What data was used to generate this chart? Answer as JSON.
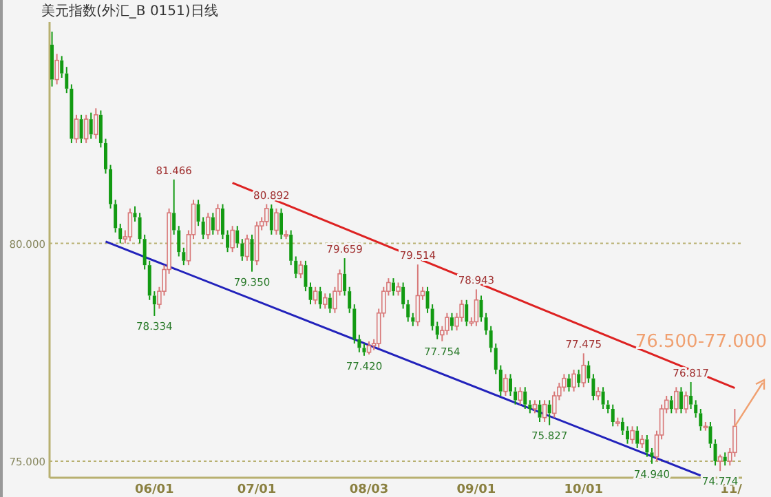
{
  "chart_data": {
    "type": "candlestick",
    "title": "美元指数(外汇_B 0151)日线",
    "categories": [
      null,
      null,
      null,
      null,
      null,
      null,
      null,
      null,
      null,
      null,
      null,
      null,
      null,
      null,
      null,
      null,
      null,
      null,
      null,
      null,
      null,
      "06/01",
      null,
      null,
      null,
      null,
      null,
      null,
      null,
      null,
      null,
      null,
      null,
      null,
      null,
      null,
      null,
      null,
      null,
      null,
      null,
      null,
      "07/01",
      null,
      null,
      null,
      null,
      null,
      null,
      null,
      null,
      null,
      null,
      null,
      null,
      null,
      null,
      null,
      null,
      null,
      null,
      null,
      null,
      null,
      null,
      "08/03",
      null,
      null,
      null,
      null,
      null,
      null,
      null,
      null,
      null,
      null,
      null,
      null,
      null,
      null,
      null,
      null,
      null,
      null,
      null,
      null,
      null,
      "09/01",
      null,
      null,
      null,
      null,
      null,
      null,
      null,
      null,
      null,
      null,
      null,
      null,
      null,
      null,
      null,
      null,
      null,
      null,
      null,
      null,
      null,
      "10/01",
      null,
      null,
      null,
      null,
      null,
      null,
      null,
      null,
      null,
      null,
      null,
      null,
      null,
      null,
      null,
      null,
      null,
      null,
      null,
      null,
      null,
      null,
      null,
      null,
      null,
      null,
      null,
      null,
      null,
      null,
      "11/"
    ],
    "ohlc": [
      [
        84.56,
        84.86,
        83.6,
        83.76
      ],
      [
        83.76,
        84.35,
        83.65,
        84.2
      ],
      [
        84.2,
        84.3,
        83.8,
        83.9
      ],
      [
        83.9,
        84.05,
        83.45,
        83.55
      ],
      [
        83.55,
        83.65,
        82.3,
        82.4
      ],
      [
        82.4,
        82.95,
        82.3,
        82.85
      ],
      [
        82.85,
        82.95,
        82.3,
        82.4
      ],
      [
        82.4,
        82.95,
        82.3,
        82.85
      ],
      [
        82.85,
        83.0,
        82.4,
        82.5
      ],
      [
        82.5,
        83.1,
        82.4,
        82.95
      ],
      [
        82.95,
        83.05,
        82.2,
        82.3
      ],
      [
        82.3,
        82.4,
        81.6,
        81.7
      ],
      [
        81.7,
        81.8,
        80.8,
        80.9
      ],
      [
        80.9,
        81.0,
        80.25,
        80.35
      ],
      [
        80.35,
        80.45,
        80.0,
        80.1
      ],
      [
        80.1,
        80.3,
        80.0,
        80.15
      ],
      [
        80.15,
        80.8,
        80.05,
        80.7
      ],
      [
        80.7,
        80.85,
        80.5,
        80.6
      ],
      [
        80.6,
        80.7,
        80.0,
        80.1
      ],
      [
        80.1,
        80.2,
        79.4,
        79.5
      ],
      [
        79.5,
        79.6,
        78.7,
        78.8
      ],
      [
        78.8,
        78.9,
        78.334,
        78.6
      ],
      [
        78.6,
        79.0,
        78.5,
        78.9
      ],
      [
        78.9,
        79.5,
        78.8,
        79.4
      ],
      [
        79.4,
        80.8,
        79.3,
        80.7
      ],
      [
        80.7,
        81.466,
        80.2,
        80.3
      ],
      [
        80.3,
        80.4,
        79.7,
        79.8
      ],
      [
        79.8,
        79.9,
        79.5,
        79.6
      ],
      [
        79.6,
        80.3,
        79.5,
        80.2
      ],
      [
        80.2,
        81.0,
        80.1,
        80.9
      ],
      [
        80.9,
        81.0,
        80.4,
        80.5
      ],
      [
        80.5,
        80.6,
        80.1,
        80.2
      ],
      [
        80.2,
        80.7,
        80.1,
        80.6
      ],
      [
        80.6,
        80.7,
        80.2,
        80.3
      ],
      [
        80.3,
        80.9,
        80.2,
        80.8
      ],
      [
        80.8,
        80.9,
        80.1,
        80.2
      ],
      [
        80.2,
        80.3,
        79.8,
        79.9
      ],
      [
        79.9,
        80.4,
        79.8,
        80.3
      ],
      [
        80.3,
        80.4,
        79.9,
        80.0
      ],
      [
        80.0,
        80.1,
        79.6,
        79.7
      ],
      [
        79.7,
        80.2,
        79.6,
        80.1
      ],
      [
        80.1,
        80.2,
        79.35,
        79.6
      ],
      [
        79.6,
        80.5,
        79.5,
        80.4
      ],
      [
        80.4,
        80.6,
        80.3,
        80.5
      ],
      [
        80.5,
        80.9,
        80.4,
        80.8
      ],
      [
        80.8,
        80.892,
        80.2,
        80.3
      ],
      [
        80.3,
        80.8,
        80.2,
        80.7
      ],
      [
        80.7,
        80.8,
        80.1,
        80.2
      ],
      [
        80.2,
        80.3,
        80.1,
        80.2
      ],
      [
        80.2,
        80.3,
        79.5,
        79.6
      ],
      [
        79.6,
        79.7,
        79.2,
        79.3
      ],
      [
        79.3,
        79.6,
        79.2,
        79.5
      ],
      [
        79.5,
        79.6,
        78.9,
        79.0
      ],
      [
        79.0,
        79.1,
        78.6,
        78.7
      ],
      [
        78.7,
        79.0,
        78.6,
        78.9
      ],
      [
        78.9,
        79.0,
        78.5,
        78.6
      ],
      [
        78.6,
        78.85,
        78.5,
        78.75
      ],
      [
        78.75,
        78.85,
        78.4,
        78.5
      ],
      [
        78.5,
        79.0,
        78.4,
        78.9
      ],
      [
        78.9,
        79.4,
        78.8,
        79.3
      ],
      [
        79.3,
        79.659,
        78.8,
        78.9
      ],
      [
        78.9,
        79.0,
        78.4,
        78.5
      ],
      [
        78.5,
        78.6,
        77.7,
        77.8
      ],
      [
        77.8,
        77.9,
        77.5,
        77.6
      ],
      [
        77.6,
        77.7,
        77.42,
        77.5
      ],
      [
        77.5,
        77.75,
        77.45,
        77.65
      ],
      [
        77.65,
        77.8,
        77.55,
        77.7
      ],
      [
        77.7,
        78.5,
        77.6,
        78.4
      ],
      [
        78.4,
        79.0,
        78.3,
        78.9
      ],
      [
        78.9,
        79.2,
        78.8,
        79.1
      ],
      [
        79.1,
        79.2,
        78.8,
        78.9
      ],
      [
        78.9,
        79.1,
        78.8,
        79.0
      ],
      [
        79.0,
        79.1,
        78.5,
        78.6
      ],
      [
        78.6,
        78.7,
        78.2,
        78.3
      ],
      [
        78.3,
        78.4,
        78.1,
        78.2
      ],
      [
        78.2,
        79.514,
        78.1,
        78.8
      ],
      [
        78.8,
        79.0,
        78.7,
        78.9
      ],
      [
        78.9,
        79.0,
        78.4,
        78.5
      ],
      [
        78.5,
        78.6,
        78.0,
        78.1
      ],
      [
        78.1,
        78.2,
        77.8,
        77.9
      ],
      [
        77.9,
        78.1,
        77.754,
        78.0
      ],
      [
        78.0,
        78.4,
        77.9,
        78.3
      ],
      [
        78.3,
        78.4,
        78.0,
        78.1
      ],
      [
        78.1,
        78.4,
        78.0,
        78.3
      ],
      [
        78.3,
        78.7,
        78.2,
        78.6
      ],
      [
        78.6,
        78.7,
        78.1,
        78.2
      ],
      [
        78.2,
        78.3,
        78.1,
        78.2
      ],
      [
        78.2,
        78.943,
        78.1,
        78.7
      ],
      [
        78.7,
        78.8,
        78.2,
        78.3
      ],
      [
        78.3,
        78.4,
        77.9,
        78.0
      ],
      [
        78.0,
        78.1,
        77.5,
        77.6
      ],
      [
        77.6,
        77.7,
        77.0,
        77.1
      ],
      [
        77.1,
        77.2,
        76.5,
        76.6
      ],
      [
        76.6,
        77.0,
        76.5,
        76.9
      ],
      [
        76.9,
        77.0,
        76.5,
        76.6
      ],
      [
        76.6,
        76.7,
        76.3,
        76.4
      ],
      [
        76.4,
        76.7,
        76.3,
        76.6
      ],
      [
        76.6,
        76.7,
        76.2,
        76.3
      ],
      [
        76.3,
        76.4,
        76.1,
        76.2
      ],
      [
        76.2,
        76.4,
        76.1,
        76.3
      ],
      [
        76.3,
        76.4,
        75.9,
        76.0
      ],
      [
        76.0,
        76.4,
        75.9,
        76.3
      ],
      [
        76.3,
        76.4,
        75.827,
        76.1
      ],
      [
        76.1,
        76.6,
        76.0,
        76.5
      ],
      [
        76.5,
        76.8,
        76.4,
        76.7
      ],
      [
        76.7,
        77.0,
        76.6,
        76.9
      ],
      [
        76.9,
        77.0,
        76.6,
        76.7
      ],
      [
        76.7,
        77.1,
        76.6,
        77.0
      ],
      [
        77.0,
        77.1,
        76.7,
        76.8
      ],
      [
        76.8,
        77.475,
        76.7,
        77.2
      ],
      [
        77.2,
        77.3,
        76.8,
        76.9
      ],
      [
        76.9,
        77.0,
        76.4,
        76.5
      ],
      [
        76.5,
        76.7,
        76.4,
        76.6
      ],
      [
        76.6,
        76.7,
        76.2,
        76.3
      ],
      [
        76.3,
        76.4,
        76.1,
        76.2
      ],
      [
        76.2,
        76.3,
        75.8,
        75.9
      ],
      [
        75.9,
        76.0,
        75.8,
        75.9
      ],
      [
        75.9,
        76.0,
        75.6,
        75.7
      ],
      [
        75.7,
        75.8,
        75.4,
        75.5
      ],
      [
        75.5,
        75.8,
        75.4,
        75.7
      ],
      [
        75.7,
        75.8,
        75.3,
        75.4
      ],
      [
        75.4,
        75.6,
        75.3,
        75.5
      ],
      [
        75.5,
        75.6,
        75.1,
        75.2
      ],
      [
        75.2,
        75.3,
        74.94,
        75.1
      ],
      [
        75.1,
        75.7,
        75.0,
        75.6
      ],
      [
        75.6,
        76.3,
        75.5,
        76.2
      ],
      [
        76.2,
        76.5,
        76.1,
        76.4
      ],
      [
        76.4,
        76.5,
        76.1,
        76.2
      ],
      [
        76.2,
        76.7,
        76.1,
        76.6
      ],
      [
        76.6,
        76.7,
        76.1,
        76.2
      ],
      [
        76.2,
        76.6,
        76.1,
        76.5
      ],
      [
        76.5,
        76.817,
        76.2,
        76.3
      ],
      [
        76.3,
        76.4,
        76.0,
        76.1
      ],
      [
        76.1,
        76.2,
        75.7,
        75.8
      ],
      [
        75.8,
        75.9,
        75.7,
        75.8
      ],
      [
        75.8,
        75.9,
        75.3,
        75.4
      ],
      [
        75.4,
        75.5,
        74.9,
        75.0
      ],
      [
        75.0,
        75.15,
        74.774,
        75.1
      ],
      [
        75.1,
        75.2,
        74.9,
        75.0
      ],
      [
        75.0,
        75.3,
        74.9,
        75.2
      ],
      [
        75.2,
        76.2,
        75.1,
        75.8
      ]
    ],
    "series": [
      {
        "type": "line",
        "color": "#dd2222",
        "values": [
          null,
          null,
          null,
          null,
          null,
          null,
          null,
          null,
          null,
          null,
          null,
          null,
          null,
          null,
          null,
          null,
          null,
          null,
          null,
          null,
          null,
          null,
          null,
          null,
          null,
          null,
          null,
          null,
          null,
          null,
          null,
          null,
          null,
          null,
          null,
          null,
          null,
          81.39,
          null,
          null,
          null,
          null,
          null,
          null,
          null,
          null,
          null,
          null,
          null,
          null,
          null,
          null,
          null,
          null,
          null,
          null,
          null,
          null,
          null,
          null,
          null,
          null,
          null,
          null,
          null,
          null,
          null,
          null,
          null,
          null,
          null,
          null,
          null,
          null,
          null,
          null,
          null,
          null,
          null,
          null,
          null,
          null,
          null,
          null,
          null,
          null,
          null,
          null,
          null,
          null,
          null,
          null,
          null,
          null,
          null,
          null,
          null,
          null,
          null,
          null,
          null,
          null,
          null,
          null,
          null,
          null,
          null,
          null,
          null,
          null,
          null,
          null,
          null,
          null,
          null,
          null,
          null,
          null,
          null,
          null,
          null,
          null,
          null,
          null,
          null,
          null,
          null,
          null,
          null,
          null,
          null,
          null,
          null,
          null,
          null,
          null,
          null,
          null,
          null,
          null,
          76.68
        ]
      },
      {
        "type": "line",
        "color": "#2222bb",
        "values": [
          null,
          null,
          null,
          null,
          null,
          null,
          null,
          null,
          null,
          null,
          null,
          80.04,
          null,
          null,
          null,
          null,
          null,
          null,
          null,
          null,
          null,
          null,
          null,
          null,
          null,
          null,
          null,
          null,
          null,
          null,
          null,
          null,
          null,
          null,
          null,
          null,
          null,
          null,
          null,
          null,
          null,
          null,
          null,
          null,
          null,
          null,
          null,
          null,
          null,
          null,
          null,
          null,
          null,
          null,
          null,
          null,
          null,
          null,
          null,
          null,
          null,
          null,
          null,
          null,
          null,
          null,
          null,
          null,
          null,
          null,
          null,
          null,
          null,
          null,
          null,
          null,
          null,
          null,
          null,
          null,
          null,
          null,
          null,
          null,
          null,
          null,
          null,
          null,
          null,
          null,
          null,
          null,
          null,
          null,
          null,
          null,
          null,
          null,
          null,
          null,
          null,
          null,
          null,
          null,
          null,
          null,
          null,
          null,
          null,
          null,
          null,
          null,
          null,
          null,
          null,
          null,
          null,
          null,
          null,
          null,
          null,
          null,
          null,
          null,
          null,
          null,
          null,
          null,
          null,
          null,
          null,
          null,
          null,
          74.67,
          null,
          null,
          null,
          null,
          null,
          null,
          null
        ]
      }
    ],
    "annotations": [
      {
        "text": "81.466",
        "y": 81.466
      },
      {
        "text": "80.892",
        "y": 80.892
      },
      {
        "text": "79.659",
        "y": 79.659
      },
      {
        "text": "79.514",
        "y": 79.514
      },
      {
        "text": "78.943",
        "y": 78.943
      },
      {
        "text": "77.475",
        "y": 77.475
      },
      {
        "text": "76.817",
        "y": 76.817
      },
      {
        "text": "78.334",
        "y": 78.334
      },
      {
        "text": "79.350",
        "y": 79.35
      },
      {
        "text": "77.420",
        "y": 77.42
      },
      {
        "text": "77.754",
        "y": 77.754
      },
      {
        "text": "75.827",
        "y": 75.827
      },
      {
        "text": "74.940",
        "y": 74.94
      },
      {
        "text": "74.774",
        "y": 74.774
      },
      "76.500-77.000"
    ],
    "ylim": [
      74.62,
      85.08
    ],
    "yticks": [
      {
        "value": 75,
        "label": "75.000"
      },
      {
        "value": 80,
        "label": "80.000"
      }
    ],
    "grid": "y"
  }
}
